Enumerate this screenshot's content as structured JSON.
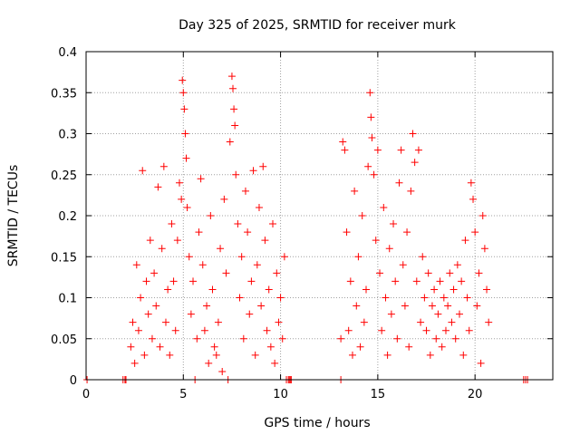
{
  "chart_data": {
    "type": "scatter",
    "title": "Day 325 of 2025, SRMTID for receiver murk",
    "xlabel": "GPS time / hours",
    "ylabel": "SRMTID / TECUs",
    "xlim": [
      0,
      24
    ],
    "ylim": [
      0,
      0.4
    ],
    "x_ticks": [
      0,
      5,
      10,
      15,
      20
    ],
    "y_ticks": [
      0,
      0.05,
      0.1,
      0.15,
      0.2,
      0.25,
      0.3,
      0.35,
      0.4
    ],
    "x_tick_labels": [
      "0",
      "5",
      "10",
      "15",
      "20"
    ],
    "y_tick_labels": [
      "0",
      "0.05",
      "0.1",
      "0.15",
      "0.2",
      "0.25",
      "0.3",
      "0.35",
      "0.4"
    ],
    "grid": true,
    "marker": "+",
    "series_color": "#ff0000",
    "series": [
      {
        "name": "SRMTID",
        "points": [
          [
            0.05,
            0
          ],
          [
            1.9,
            0
          ],
          [
            2.0,
            0
          ],
          [
            2.05,
            0
          ],
          [
            5.6,
            0
          ],
          [
            7.3,
            0
          ],
          [
            10.3,
            0
          ],
          [
            10.4,
            0
          ],
          [
            10.45,
            0
          ],
          [
            10.5,
            0
          ],
          [
            10.55,
            0
          ],
          [
            13.1,
            0
          ],
          [
            22.5,
            0
          ],
          [
            22.6,
            0
          ],
          [
            22.7,
            0
          ],
          [
            2.3,
            0.04
          ],
          [
            2.4,
            0.07
          ],
          [
            2.5,
            0.02
          ],
          [
            2.6,
            0.14
          ],
          [
            2.7,
            0.06
          ],
          [
            2.8,
            0.1
          ],
          [
            2.9,
            0.255
          ],
          [
            3.0,
            0.03
          ],
          [
            3.1,
            0.12
          ],
          [
            3.2,
            0.08
          ],
          [
            3.3,
            0.17
          ],
          [
            3.4,
            0.05
          ],
          [
            3.5,
            0.13
          ],
          [
            3.6,
            0.09
          ],
          [
            3.7,
            0.235
          ],
          [
            3.8,
            0.04
          ],
          [
            3.9,
            0.16
          ],
          [
            4.0,
            0.26
          ],
          [
            4.1,
            0.07
          ],
          [
            4.2,
            0.11
          ],
          [
            4.3,
            0.03
          ],
          [
            4.4,
            0.19
          ],
          [
            4.5,
            0.12
          ],
          [
            4.6,
            0.06
          ],
          [
            4.7,
            0.17
          ],
          [
            4.8,
            0.24
          ],
          [
            4.9,
            0.22
          ],
          [
            4.95,
            0.365
          ],
          [
            5.0,
            0.35
          ],
          [
            5.05,
            0.33
          ],
          [
            5.1,
            0.3
          ],
          [
            5.15,
            0.27
          ],
          [
            5.2,
            0.21
          ],
          [
            5.3,
            0.15
          ],
          [
            5.4,
            0.08
          ],
          [
            5.5,
            0.12
          ],
          [
            5.7,
            0.05
          ],
          [
            5.8,
            0.18
          ],
          [
            5.9,
            0.245
          ],
          [
            6.0,
            0.14
          ],
          [
            6.1,
            0.06
          ],
          [
            6.2,
            0.09
          ],
          [
            6.3,
            0.02
          ],
          [
            6.4,
            0.2
          ],
          [
            6.5,
            0.11
          ],
          [
            6.6,
            0.04
          ],
          [
            6.7,
            0.03
          ],
          [
            6.8,
            0.07
          ],
          [
            6.9,
            0.16
          ],
          [
            7.0,
            0.01
          ],
          [
            7.1,
            0.22
          ],
          [
            7.2,
            0.13
          ],
          [
            7.4,
            0.29
          ],
          [
            7.5,
            0.37
          ],
          [
            7.55,
            0.355
          ],
          [
            7.6,
            0.33
          ],
          [
            7.65,
            0.31
          ],
          [
            7.7,
            0.25
          ],
          [
            7.8,
            0.19
          ],
          [
            7.9,
            0.1
          ],
          [
            8.0,
            0.15
          ],
          [
            8.1,
            0.05
          ],
          [
            8.2,
            0.23
          ],
          [
            8.3,
            0.18
          ],
          [
            8.4,
            0.08
          ],
          [
            8.5,
            0.12
          ],
          [
            8.6,
            0.255
          ],
          [
            8.7,
            0.03
          ],
          [
            8.8,
            0.14
          ],
          [
            8.9,
            0.21
          ],
          [
            9.0,
            0.09
          ],
          [
            9.1,
            0.26
          ],
          [
            9.2,
            0.17
          ],
          [
            9.3,
            0.06
          ],
          [
            9.4,
            0.11
          ],
          [
            9.5,
            0.04
          ],
          [
            9.6,
            0.19
          ],
          [
            9.7,
            0.02
          ],
          [
            9.8,
            0.13
          ],
          [
            9.9,
            0.07
          ],
          [
            10.0,
            0.1
          ],
          [
            10.1,
            0.05
          ],
          [
            10.2,
            0.15
          ],
          [
            13.1,
            0.05
          ],
          [
            13.2,
            0.29
          ],
          [
            13.3,
            0.28
          ],
          [
            13.4,
            0.18
          ],
          [
            13.5,
            0.06
          ],
          [
            13.6,
            0.12
          ],
          [
            13.7,
            0.03
          ],
          [
            13.8,
            0.23
          ],
          [
            13.9,
            0.09
          ],
          [
            14.0,
            0.15
          ],
          [
            14.1,
            0.04
          ],
          [
            14.2,
            0.2
          ],
          [
            14.3,
            0.07
          ],
          [
            14.4,
            0.11
          ],
          [
            14.5,
            0.26
          ],
          [
            14.6,
            0.35
          ],
          [
            14.65,
            0.32
          ],
          [
            14.7,
            0.295
          ],
          [
            14.8,
            0.25
          ],
          [
            14.9,
            0.17
          ],
          [
            15.0,
            0.28
          ],
          [
            15.1,
            0.13
          ],
          [
            15.2,
            0.06
          ],
          [
            15.3,
            0.21
          ],
          [
            15.4,
            0.1
          ],
          [
            15.5,
            0.03
          ],
          [
            15.6,
            0.16
          ],
          [
            15.7,
            0.08
          ],
          [
            15.8,
            0.19
          ],
          [
            15.9,
            0.12
          ],
          [
            16.0,
            0.05
          ],
          [
            16.1,
            0.24
          ],
          [
            16.2,
            0.28
          ],
          [
            16.3,
            0.14
          ],
          [
            16.4,
            0.09
          ],
          [
            16.5,
            0.18
          ],
          [
            16.6,
            0.04
          ],
          [
            16.7,
            0.23
          ],
          [
            16.8,
            0.3
          ],
          [
            16.9,
            0.265
          ],
          [
            17.0,
            0.12
          ],
          [
            17.1,
            0.28
          ],
          [
            17.2,
            0.07
          ],
          [
            17.3,
            0.15
          ],
          [
            17.4,
            0.1
          ],
          [
            17.5,
            0.06
          ],
          [
            17.6,
            0.13
          ],
          [
            17.7,
            0.03
          ],
          [
            17.8,
            0.09
          ],
          [
            17.9,
            0.11
          ],
          [
            18.0,
            0.05
          ],
          [
            18.1,
            0.08
          ],
          [
            18.2,
            0.12
          ],
          [
            18.3,
            0.04
          ],
          [
            18.4,
            0.1
          ],
          [
            18.5,
            0.06
          ],
          [
            18.6,
            0.09
          ],
          [
            18.7,
            0.13
          ],
          [
            18.8,
            0.07
          ],
          [
            18.9,
            0.11
          ],
          [
            19.0,
            0.05
          ],
          [
            19.1,
            0.14
          ],
          [
            19.2,
            0.08
          ],
          [
            19.3,
            0.12
          ],
          [
            19.4,
            0.03
          ],
          [
            19.5,
            0.17
          ],
          [
            19.6,
            0.1
          ],
          [
            19.7,
            0.06
          ],
          [
            19.8,
            0.24
          ],
          [
            19.9,
            0.22
          ],
          [
            20.0,
            0.18
          ],
          [
            20.1,
            0.09
          ],
          [
            20.2,
            0.13
          ],
          [
            20.3,
            0.02
          ],
          [
            20.4,
            0.2
          ],
          [
            20.5,
            0.16
          ],
          [
            20.6,
            0.11
          ],
          [
            20.7,
            0.07
          ]
        ]
      }
    ]
  }
}
